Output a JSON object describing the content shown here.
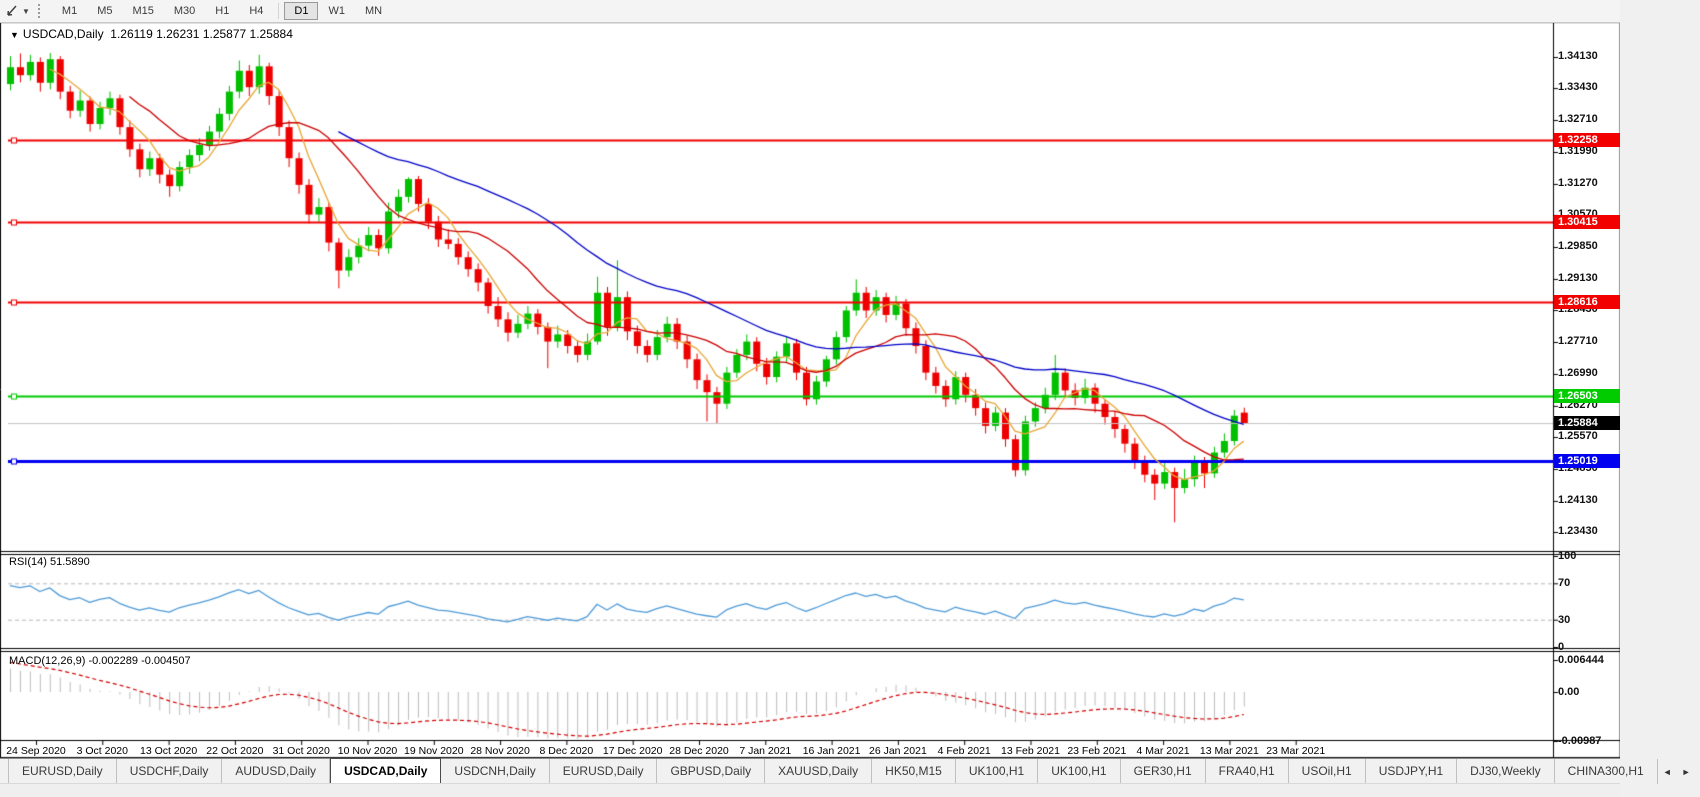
{
  "toolbar": {
    "tool_caret": "▼",
    "timeframes": [
      {
        "label": "M1",
        "active": false
      },
      {
        "label": "M5",
        "active": false
      },
      {
        "label": "M15",
        "active": false
      },
      {
        "label": "M30",
        "active": false
      },
      {
        "label": "H1",
        "active": false
      },
      {
        "label": "H4",
        "active": false
      },
      {
        "label": "D1",
        "active": true
      },
      {
        "label": "W1",
        "active": false
      },
      {
        "label": "MN",
        "active": false
      }
    ]
  },
  "chart": {
    "title_dropdown": "▼",
    "title_symbol": "USDCAD,Daily",
    "title_ohlc": "1.26119 1.26231 1.25877 1.25884"
  },
  "chart_data": {
    "type": "candlestick",
    "symbol": "USDCAD",
    "timeframe": "Daily",
    "ohlc_current": {
      "open": "1.26119",
      "high": "1.26231",
      "low": "1.25877",
      "close": "1.25884"
    },
    "price_ticks": [
      "1.34130",
      "1.33430",
      "1.32710",
      "1.31990",
      "1.31270",
      "1.30570",
      "1.29850",
      "1.29130",
      "1.28430",
      "1.27710",
      "1.26990",
      "1.26270",
      "1.25570",
      "1.24850",
      "1.24130",
      "1.23430"
    ],
    "levels": [
      {
        "label": "1.32258",
        "price": 1.32258,
        "color": "#f20000",
        "text": "#ffffff",
        "width": 2
      },
      {
        "label": "1.30415",
        "price": 1.30415,
        "color": "#f20000",
        "text": "#ffffff",
        "width": 2
      },
      {
        "label": "1.28616",
        "price": 1.28616,
        "color": "#f20000",
        "text": "#ffffff",
        "width": 2
      },
      {
        "label": "1.26503",
        "price": 1.26503,
        "color": "#00cc00",
        "text": "#ffffff",
        "width": 2
      },
      {
        "label": "1.25019",
        "price": 1.25019,
        "color": "#0000f0",
        "text": "#ffffff",
        "width": 3
      }
    ],
    "current_price": {
      "label": "1.25884",
      "price": 1.25884,
      "color": "#000000",
      "text": "#ffffff"
    },
    "moving_averages": [
      {
        "name": "fast",
        "period": 5,
        "color": "#e8a838"
      },
      {
        "name": "medium",
        "period": 13,
        "color": "#cc0000"
      },
      {
        "name": "slow",
        "period": 34,
        "color": "#0000c8"
      }
    ],
    "candle_colors": {
      "bull": "#00c000",
      "bear": "#ee0000"
    },
    "date_labels": [
      "24 Sep 2020",
      "3 Oct 2020",
      "13 Oct 2020",
      "22 Oct 2020",
      "31 Oct 2020",
      "10 Nov 2020",
      "19 Nov 2020",
      "28 Nov 2020",
      "8 Dec 2020",
      "17 Dec 2020",
      "28 Dec 2020",
      "7 Jan 2021",
      "16 Jan 2021",
      "26 Jan 2021",
      "4 Feb 2021",
      "13 Feb 2021",
      "23 Feb 2021",
      "4 Mar 2021",
      "13 Mar 2021",
      "23 Mar 2021"
    ],
    "rsi": {
      "label": "RSI(14) 51.5890",
      "period": 14,
      "value": 51.589,
      "color": "#4f9bd8",
      "ticks": [
        {
          "label": "100",
          "value": 100
        },
        {
          "label": "70",
          "value": 70
        },
        {
          "label": "30",
          "value": 30
        },
        {
          "label": "0",
          "value": 0
        }
      ],
      "dashed_levels": [
        70,
        30
      ]
    },
    "macd": {
      "label": "MACD(12,26,9) -0.002289 -0.004507",
      "fast": 12,
      "slow": 26,
      "signal_period": 9,
      "macd_value": -0.002289,
      "signal_value": -0.004507,
      "hist_color": "#bdbdbd",
      "signal_color": "#d40000",
      "ticks": [
        {
          "label": "0.006444",
          "value": 0.006444
        },
        {
          "label": "0.00",
          "value": 0
        },
        {
          "label": "-0.00987",
          "value": -0.00987
        }
      ]
    },
    "ohlc": [
      [
        1.3352,
        1.3415,
        1.3338,
        1.339
      ],
      [
        1.339,
        1.3421,
        1.3356,
        1.3372
      ],
      [
        1.3372,
        1.3418,
        1.336,
        1.3402
      ],
      [
        1.3402,
        1.3412,
        1.3335,
        1.3355
      ],
      [
        1.3355,
        1.3422,
        1.334,
        1.3408
      ],
      [
        1.3408,
        1.3415,
        1.3318,
        1.3335
      ],
      [
        1.3335,
        1.3348,
        1.3275,
        1.3292
      ],
      [
        1.3292,
        1.3337,
        1.3278,
        1.3315
      ],
      [
        1.3315,
        1.3324,
        1.3245,
        1.3262
      ],
      [
        1.3262,
        1.3312,
        1.325,
        1.3298
      ],
      [
        1.3298,
        1.3335,
        1.3282,
        1.332
      ],
      [
        1.332,
        1.3328,
        1.3238,
        1.3255
      ],
      [
        1.3255,
        1.327,
        1.3188,
        1.3205
      ],
      [
        1.3205,
        1.3218,
        1.3142,
        1.316
      ],
      [
        1.316,
        1.32,
        1.3145,
        1.3185
      ],
      [
        1.3185,
        1.3195,
        1.3128,
        1.3148
      ],
      [
        1.3148,
        1.316,
        1.3098,
        1.3122
      ],
      [
        1.3122,
        1.3178,
        1.311,
        1.3165
      ],
      [
        1.3165,
        1.3205,
        1.315,
        1.3192
      ],
      [
        1.3192,
        1.323,
        1.3178,
        1.3215
      ],
      [
        1.3215,
        1.3258,
        1.3202,
        1.3245
      ],
      [
        1.3245,
        1.3298,
        1.323,
        1.3285
      ],
      [
        1.3285,
        1.3348,
        1.327,
        1.3335
      ],
      [
        1.3335,
        1.3405,
        1.332,
        1.3382
      ],
      [
        1.3382,
        1.3395,
        1.3325,
        1.3345
      ],
      [
        1.3345,
        1.3418,
        1.333,
        1.3392
      ],
      [
        1.3392,
        1.34,
        1.3305,
        1.3325
      ],
      [
        1.3325,
        1.3338,
        1.3235,
        1.3255
      ],
      [
        1.3255,
        1.327,
        1.3165,
        1.3185
      ],
      [
        1.3185,
        1.3198,
        1.3105,
        1.3125
      ],
      [
        1.3125,
        1.3138,
        1.3038,
        1.3058
      ],
      [
        1.3058,
        1.3095,
        1.3042,
        1.3075
      ],
      [
        1.3075,
        1.3085,
        1.2975,
        1.2995
      ],
      [
        1.2995,
        1.3005,
        1.2892,
        1.2932
      ],
      [
        1.2932,
        1.298,
        1.2918,
        1.2962
      ],
      [
        1.2962,
        1.3005,
        1.2948,
        1.2988
      ],
      [
        1.2988,
        1.303,
        1.2975,
        1.3012
      ],
      [
        1.3012,
        1.3025,
        1.2965,
        1.2982
      ],
      [
        1.2982,
        1.3085,
        1.297,
        1.3065
      ],
      [
        1.3065,
        1.3115,
        1.305,
        1.3098
      ],
      [
        1.3098,
        1.3142,
        1.3085,
        1.3138
      ],
      [
        1.3138,
        1.3145,
        1.3065,
        1.3082
      ],
      [
        1.3082,
        1.3095,
        1.3025,
        1.3042
      ],
      [
        1.3042,
        1.3055,
        1.2985,
        1.3002
      ],
      [
        1.3002,
        1.3025,
        1.298,
        1.2992
      ],
      [
        1.2992,
        1.3005,
        1.2945,
        1.2962
      ],
      [
        1.2962,
        1.2975,
        1.2918,
        1.2935
      ],
      [
        1.2935,
        1.2948,
        1.2885,
        1.2905
      ],
      [
        1.2905,
        1.2915,
        1.2835,
        1.2852
      ],
      [
        1.2852,
        1.2872,
        1.2805,
        1.2822
      ],
      [
        1.2822,
        1.2838,
        1.2772,
        1.2792
      ],
      [
        1.2792,
        1.2832,
        1.278,
        1.2812
      ],
      [
        1.2812,
        1.2852,
        1.28,
        1.2835
      ],
      [
        1.2835,
        1.2845,
        1.2788,
        1.2805
      ],
      [
        1.2805,
        1.2815,
        1.2712,
        1.2772
      ],
      [
        1.2772,
        1.2808,
        1.2758,
        1.2788
      ],
      [
        1.2788,
        1.2798,
        1.2745,
        1.2762
      ],
      [
        1.2762,
        1.2775,
        1.2725,
        1.2742
      ],
      [
        1.2742,
        1.279,
        1.273,
        1.2772
      ],
      [
        1.2772,
        1.2918,
        1.2765,
        1.2882
      ],
      [
        1.2882,
        1.2895,
        1.2785,
        1.2805
      ],
      [
        1.2805,
        1.2955,
        1.2795,
        1.2872
      ],
      [
        1.2872,
        1.2885,
        1.2775,
        1.2795
      ],
      [
        1.2795,
        1.2808,
        1.2745,
        1.2762
      ],
      [
        1.2762,
        1.2775,
        1.2725,
        1.2742
      ],
      [
        1.2742,
        1.2798,
        1.273,
        1.2782
      ],
      [
        1.2782,
        1.2828,
        1.277,
        1.2812
      ],
      [
        1.2812,
        1.2825,
        1.2755,
        1.2772
      ],
      [
        1.2772,
        1.2785,
        1.2712,
        1.2732
      ],
      [
        1.2732,
        1.2745,
        1.2665,
        1.2685
      ],
      [
        1.2685,
        1.2698,
        1.2592,
        1.2658
      ],
      [
        1.2658,
        1.267,
        1.2588,
        1.2632
      ],
      [
        1.2632,
        1.2715,
        1.262,
        1.2702
      ],
      [
        1.2702,
        1.2755,
        1.269,
        1.2742
      ],
      [
        1.2742,
        1.2788,
        1.273,
        1.2772
      ],
      [
        1.2772,
        1.2782,
        1.2705,
        1.2722
      ],
      [
        1.2722,
        1.2735,
        1.2675,
        1.2692
      ],
      [
        1.2692,
        1.275,
        1.268,
        1.2738
      ],
      [
        1.2738,
        1.2782,
        1.2725,
        1.2768
      ],
      [
        1.2768,
        1.2778,
        1.2685,
        1.2702
      ],
      [
        1.2702,
        1.2715,
        1.2628,
        1.2642
      ],
      [
        1.2642,
        1.2695,
        1.263,
        1.2682
      ],
      [
        1.2682,
        1.274,
        1.267,
        1.2732
      ],
      [
        1.2732,
        1.2795,
        1.272,
        1.2782
      ],
      [
        1.2782,
        1.2852,
        1.277,
        1.2842
      ],
      [
        1.2842,
        1.2912,
        1.283,
        1.2882
      ],
      [
        1.2882,
        1.2895,
        1.2825,
        1.2842
      ],
      [
        1.2842,
        1.2888,
        1.283,
        1.2872
      ],
      [
        1.2872,
        1.2882,
        1.2815,
        1.2832
      ],
      [
        1.2832,
        1.2875,
        1.282,
        1.2858
      ],
      [
        1.2858,
        1.2868,
        1.2785,
        1.2802
      ],
      [
        1.2802,
        1.2815,
        1.2745,
        1.2762
      ],
      [
        1.2762,
        1.2775,
        1.2685,
        1.2702
      ],
      [
        1.2702,
        1.2715,
        1.2655,
        1.2672
      ],
      [
        1.2672,
        1.2685,
        1.2625,
        1.2642
      ],
      [
        1.2642,
        1.2705,
        1.263,
        1.2692
      ],
      [
        1.2692,
        1.2702,
        1.2635,
        1.2652
      ],
      [
        1.2652,
        1.2665,
        1.2605,
        1.2622
      ],
      [
        1.2622,
        1.2635,
        1.2565,
        1.2582
      ],
      [
        1.2582,
        1.2625,
        1.257,
        1.2612
      ],
      [
        1.2612,
        1.2622,
        1.2535,
        1.2552
      ],
      [
        1.2552,
        1.2562,
        1.2468,
        1.2482
      ],
      [
        1.2482,
        1.2605,
        1.247,
        1.2592
      ],
      [
        1.2592,
        1.2635,
        1.258,
        1.2622
      ],
      [
        1.2622,
        1.2668,
        1.261,
        1.2652
      ],
      [
        1.2652,
        1.2742,
        1.264,
        1.2702
      ],
      [
        1.2702,
        1.2712,
        1.2645,
        1.2662
      ],
      [
        1.2662,
        1.2678,
        1.2628,
        1.2645
      ],
      [
        1.2645,
        1.2688,
        1.2632,
        1.2668
      ],
      [
        1.2668,
        1.2678,
        1.2612,
        1.2632
      ],
      [
        1.2632,
        1.2642,
        1.2585,
        1.2602
      ],
      [
        1.2602,
        1.2615,
        1.2555,
        1.2575
      ],
      [
        1.2575,
        1.2585,
        1.2522,
        1.2542
      ],
      [
        1.2542,
        1.2555,
        1.2485,
        1.2502
      ],
      [
        1.2502,
        1.2515,
        1.2455,
        1.2472
      ],
      [
        1.2472,
        1.2485,
        1.2415,
        1.2452
      ],
      [
        1.2452,
        1.2498,
        1.244,
        1.2478
      ],
      [
        1.2478,
        1.2488,
        1.2365,
        1.2442
      ],
      [
        1.2442,
        1.2485,
        1.243,
        1.2462
      ],
      [
        1.2462,
        1.2515,
        1.2445,
        1.2502
      ],
      [
        1.2502,
        1.2512,
        1.2442,
        1.2475
      ],
      [
        1.2475,
        1.2535,
        1.2465,
        1.2522
      ],
      [
        1.2522,
        1.2565,
        1.251,
        1.2548
      ],
      [
        1.2548,
        1.2618,
        1.2538,
        1.2605
      ],
      [
        1.26119,
        1.26231,
        1.25877,
        1.25884
      ]
    ]
  },
  "tabs": {
    "scroll_left": "◄",
    "scroll_right": "►",
    "items": [
      {
        "label": "EURUSD,Daily",
        "active": false
      },
      {
        "label": "USDCHF,Daily",
        "active": false
      },
      {
        "label": "AUDUSD,Daily",
        "active": false
      },
      {
        "label": "USDCAD,Daily",
        "active": true
      },
      {
        "label": "USDCNH,Daily",
        "active": false
      },
      {
        "label": "EURUSD,Daily",
        "active": false
      },
      {
        "label": "GBPUSD,Daily",
        "active": false
      },
      {
        "label": "XAUUSD,Daily",
        "active": false
      },
      {
        "label": "HK50,M15",
        "active": false
      },
      {
        "label": "UK100,H1",
        "active": false
      },
      {
        "label": "UK100,H1",
        "active": false
      },
      {
        "label": "GER30,H1",
        "active": false
      },
      {
        "label": "FRA40,H1",
        "active": false
      },
      {
        "label": "USOil,H1",
        "active": false
      },
      {
        "label": "USDJPY,H1",
        "active": false
      },
      {
        "label": "DJ30,Weekly",
        "active": false
      },
      {
        "label": "CHINA300,H1",
        "active": false
      }
    ]
  }
}
